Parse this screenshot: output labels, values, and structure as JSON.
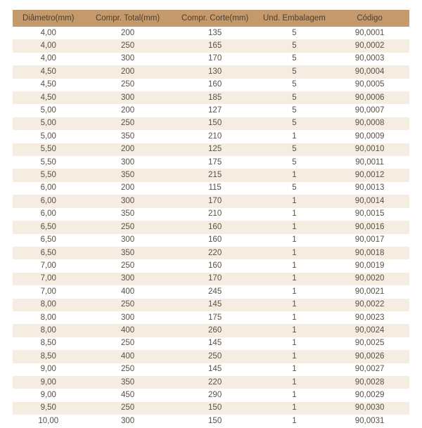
{
  "table": {
    "header_bg": "#c49a6c",
    "header_text_color": "#4a3e30",
    "row_odd_bg": "#ffffff",
    "row_even_bg": "#f5ede2",
    "cell_text_color": "#5a5046",
    "font_size_pt": 9,
    "columns": [
      {
        "label": "Diâmetro(mm)",
        "align": "center"
      },
      {
        "label": "Compr. Total(mm)",
        "align": "center"
      },
      {
        "label": "Compr. Corte(mm)",
        "align": "center"
      },
      {
        "label": "Und. Embalagem",
        "align": "center"
      },
      {
        "label": "Código",
        "align": "center"
      }
    ],
    "rows": [
      [
        "4,00",
        "200",
        "135",
        "5",
        "90,0001"
      ],
      [
        "4,00",
        "250",
        "165",
        "5",
        "90,0002"
      ],
      [
        "4,00",
        "300",
        "170",
        "5",
        "90,0003"
      ],
      [
        "4,50",
        "200",
        "130",
        "5",
        "90,0004"
      ],
      [
        "4,50",
        "250",
        "160",
        "5",
        "90,0005"
      ],
      [
        "4,50",
        "300",
        "185",
        "5",
        "90,0006"
      ],
      [
        "5,00",
        "200",
        "127",
        "5",
        "90,0007"
      ],
      [
        "5,00",
        "250",
        "150",
        "5",
        "90,0008"
      ],
      [
        "5,00",
        "350",
        "210",
        "1",
        "90,0009"
      ],
      [
        "5,50",
        "200",
        "125",
        "5",
        "90,0010"
      ],
      [
        "5,50",
        "300",
        "175",
        "5",
        "90,0011"
      ],
      [
        "5,50",
        "350",
        "215",
        "1",
        "90,0012"
      ],
      [
        "6,00",
        "200",
        "115",
        "5",
        "90,0013"
      ],
      [
        "6,00",
        "300",
        "170",
        "1",
        "90,0014"
      ],
      [
        "6,00",
        "350",
        "210",
        "1",
        "90,0015"
      ],
      [
        "6,50",
        "250",
        "160",
        "1",
        "90,0016"
      ],
      [
        "6,50",
        "300",
        "160",
        "1",
        "90,0017"
      ],
      [
        "6,50",
        "350",
        "220",
        "1",
        "90,0018"
      ],
      [
        "7,00",
        "250",
        "160",
        "1",
        "90,0019"
      ],
      [
        "7,00",
        "300",
        "170",
        "1",
        "90,0020"
      ],
      [
        "7,00",
        "400",
        "245",
        "1",
        "90,0021"
      ],
      [
        "8,00",
        "250",
        "145",
        "1",
        "90,0022"
      ],
      [
        "8,00",
        "300",
        "175",
        "1",
        "90,0023"
      ],
      [
        "8,00",
        "400",
        "260",
        "1",
        "90,0024"
      ],
      [
        "8,50",
        "250",
        "145",
        "1",
        "90,0025"
      ],
      [
        "8,50",
        "400",
        "250",
        "1",
        "90,0026"
      ],
      [
        "9,00",
        "250",
        "145",
        "1",
        "90,0027"
      ],
      [
        "9,00",
        "350",
        "220",
        "1",
        "90,0028"
      ],
      [
        "9,00",
        "450",
        "290",
        "1",
        "90,0029"
      ],
      [
        "9,50",
        "250",
        "150",
        "1",
        "90,0030"
      ],
      [
        "10,00",
        "300",
        "150",
        "1",
        "90,0031"
      ]
    ]
  }
}
